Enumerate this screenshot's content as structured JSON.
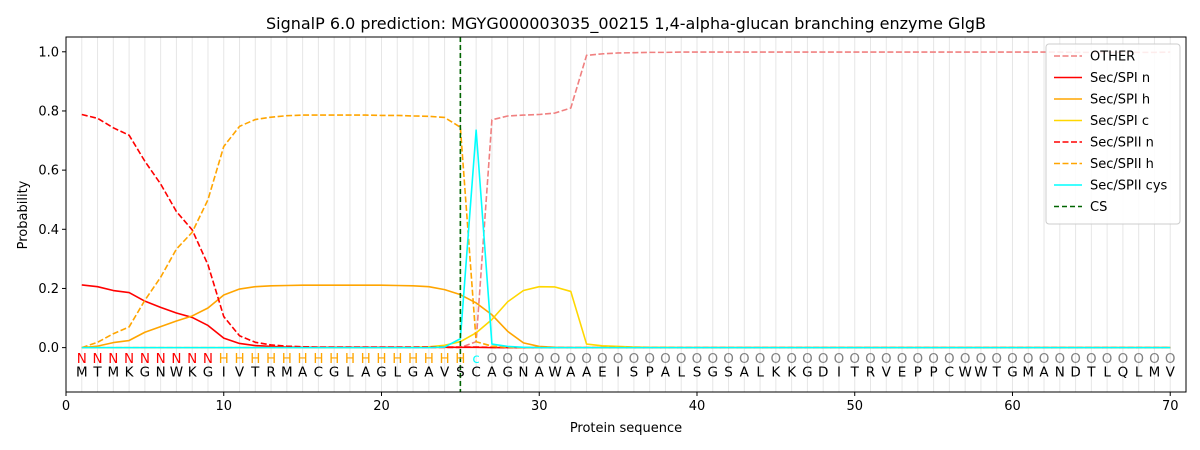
{
  "chart_data": {
    "type": "line",
    "title": "SignalP 6.0 prediction: MGYG000003035_00215 1,4-alpha-glucan branching enzyme GlgB",
    "xlabel": "Protein sequence",
    "ylabel": "Probability",
    "xlim": [
      0,
      71
    ],
    "ylim": [
      -0.15,
      1.05
    ],
    "xticks": [
      0,
      10,
      20,
      30,
      40,
      50,
      60,
      70
    ],
    "yticks": [
      0.0,
      0.2,
      0.4,
      0.6,
      0.8,
      1.0
    ],
    "xtick_labels": [
      "0",
      "10",
      "20",
      "30",
      "40",
      "50",
      "60",
      "70"
    ],
    "ytick_labels": [
      "0.0",
      "0.2",
      "0.4",
      "0.6",
      "0.8",
      "1.0"
    ],
    "legend_position": "top-right",
    "sequence": "MTMKGNWKGIVTRMACGLAGLGAVSCAGNAWAAEISPALSGSALKKGDITRVEPPCWWTGMANDTLQLMV",
    "labels": "NNNNNNNNNHHHHHHHHHHHHHHHHcOOOOOOOOOOOOOOOOOOOOOOOOOOOOOOOOOOOOOOOOOOOOO",
    "label_colors": {
      "N": "#ff0000",
      "H": "#ffa500",
      "c": "#00ffff",
      "O": "#808080"
    },
    "cs_position": 25,
    "series": [
      {
        "name": "OTHER",
        "color": "#f08080",
        "dash": true,
        "values": [
          0.0,
          0.0,
          0.0,
          0.0,
          0.0,
          0.0,
          0.0,
          0.0,
          0.0,
          0.0,
          0.0,
          0.0,
          0.0,
          0.0,
          0.0,
          0.0,
          0.0,
          0.0,
          0.0,
          0.0,
          0.0,
          0.0,
          0.0,
          0.0,
          0.0,
          0.02,
          0.77,
          0.783,
          0.786,
          0.788,
          0.793,
          0.81,
          0.988,
          0.993,
          0.996,
          0.997,
          0.998,
          0.998,
          0.999,
          0.999,
          0.999,
          0.999,
          0.999,
          0.999,
          0.999,
          0.999,
          0.999,
          0.999,
          0.999,
          0.999,
          0.999,
          0.999,
          0.999,
          0.999,
          0.999,
          0.999,
          0.999,
          0.999,
          0.999,
          0.999,
          0.999,
          0.999,
          0.999,
          0.998,
          0.998,
          0.998,
          0.998,
          0.998,
          0.998,
          0.999
        ]
      },
      {
        "name": "Sec/SPI n",
        "color": "#ff0000",
        "dash": false,
        "values": [
          0.212,
          0.206,
          0.193,
          0.186,
          0.157,
          0.136,
          0.117,
          0.102,
          0.075,
          0.032,
          0.014,
          0.007,
          0.004,
          0.002,
          0.001,
          0.001,
          0.001,
          0.001,
          0.001,
          0.001,
          0.001,
          0.001,
          0.001,
          0.001,
          0.001,
          0.001,
          0.0,
          0.0,
          0.0,
          0.0,
          0.0,
          0.0,
          0.0,
          0.0,
          0.0,
          0.0,
          0.0,
          0.0,
          0.0,
          0.0,
          0.0,
          0.0,
          0.0,
          0.0,
          0.0,
          0.0,
          0.0,
          0.0,
          0.0,
          0.0,
          0.0,
          0.0,
          0.0,
          0.0,
          0.0,
          0.0,
          0.0,
          0.0,
          0.0,
          0.0,
          0.0,
          0.0,
          0.0,
          0.0,
          0.0,
          0.0,
          0.0,
          0.0,
          0.0,
          0.0
        ]
      },
      {
        "name": "Sec/SPI h",
        "color": "#ffa500",
        "dash": false,
        "values": [
          0.0,
          0.005,
          0.017,
          0.024,
          0.052,
          0.071,
          0.09,
          0.107,
          0.134,
          0.178,
          0.198,
          0.206,
          0.209,
          0.21,
          0.211,
          0.211,
          0.211,
          0.211,
          0.211,
          0.211,
          0.21,
          0.209,
          0.206,
          0.196,
          0.179,
          0.151,
          0.111,
          0.055,
          0.016,
          0.004,
          0.001,
          0.0,
          0.0,
          0.0,
          0.0,
          0.0,
          0.0,
          0.0,
          0.0,
          0.0,
          0.0,
          0.0,
          0.0,
          0.0,
          0.0,
          0.0,
          0.0,
          0.0,
          0.0,
          0.0,
          0.0,
          0.0,
          0.0,
          0.0,
          0.0,
          0.0,
          0.0,
          0.0,
          0.0,
          0.0,
          0.0,
          0.0,
          0.0,
          0.0,
          0.0,
          0.0,
          0.0,
          0.0,
          0.0,
          0.0
        ]
      },
      {
        "name": "Sec/SPI c",
        "color": "#ffd700",
        "dash": false,
        "values": [
          0.0,
          0.0,
          0.0,
          0.0,
          0.0,
          0.0,
          0.0,
          0.0,
          0.0,
          0.0,
          0.0,
          0.0,
          0.0,
          0.0,
          0.0,
          0.0,
          0.0,
          0.0,
          0.0,
          0.0,
          0.0,
          0.001,
          0.003,
          0.008,
          0.02,
          0.05,
          0.095,
          0.155,
          0.193,
          0.206,
          0.205,
          0.19,
          0.012,
          0.006,
          0.004,
          0.002,
          0.001,
          0.001,
          0.0,
          0.0,
          0.0,
          0.0,
          0.0,
          0.0,
          0.0,
          0.0,
          0.0,
          0.0,
          0.0,
          0.0,
          0.0,
          0.0,
          0.0,
          0.0,
          0.0,
          0.0,
          0.0,
          0.0,
          0.0,
          0.0,
          0.0,
          0.0,
          0.0,
          0.0,
          0.0,
          0.0,
          0.0,
          0.0,
          0.0,
          0.0
        ]
      },
      {
        "name": "Sec/SPII n",
        "color": "#ff0000",
        "dash": true,
        "values": [
          0.788,
          0.775,
          0.743,
          0.718,
          0.63,
          0.553,
          0.46,
          0.398,
          0.28,
          0.105,
          0.04,
          0.018,
          0.009,
          0.005,
          0.003,
          0.002,
          0.002,
          0.002,
          0.002,
          0.002,
          0.002,
          0.002,
          0.002,
          0.002,
          0.002,
          0.002,
          0.001,
          0.0,
          0.0,
          0.0,
          0.0,
          0.0,
          0.0,
          0.0,
          0.0,
          0.0,
          0.0,
          0.0,
          0.0,
          0.0,
          0.0,
          0.0,
          0.0,
          0.0,
          0.0,
          0.0,
          0.0,
          0.0,
          0.0,
          0.0,
          0.0,
          0.0,
          0.0,
          0.0,
          0.0,
          0.0,
          0.0,
          0.0,
          0.0,
          0.0,
          0.0,
          0.0,
          0.0,
          0.0,
          0.0,
          0.0,
          0.0,
          0.0,
          0.0,
          0.0
        ]
      },
      {
        "name": "Sec/SPII h",
        "color": "#ffa500",
        "dash": true,
        "values": [
          0.0,
          0.018,
          0.047,
          0.07,
          0.16,
          0.238,
          0.333,
          0.39,
          0.5,
          0.68,
          0.748,
          0.771,
          0.779,
          0.784,
          0.786,
          0.786,
          0.786,
          0.786,
          0.786,
          0.785,
          0.785,
          0.783,
          0.782,
          0.778,
          0.745,
          0.02,
          0.005,
          0.001,
          0.0,
          0.0,
          0.0,
          0.0,
          0.0,
          0.0,
          0.0,
          0.0,
          0.0,
          0.0,
          0.0,
          0.0,
          0.0,
          0.0,
          0.0,
          0.0,
          0.0,
          0.0,
          0.0,
          0.0,
          0.0,
          0.0,
          0.0,
          0.0,
          0.0,
          0.0,
          0.0,
          0.0,
          0.0,
          0.0,
          0.0,
          0.0,
          0.0,
          0.0,
          0.0,
          0.0,
          0.0,
          0.0,
          0.0,
          0.0,
          0.0,
          0.0
        ]
      },
      {
        "name": "Sec/SPII cys",
        "color": "#00ffff",
        "dash": false,
        "values": [
          0.0,
          0.0,
          0.0,
          0.0,
          0.0,
          0.0,
          0.0,
          0.0,
          0.0,
          0.0,
          0.0,
          0.0,
          0.0,
          0.0,
          0.0,
          0.0,
          0.0,
          0.0,
          0.0,
          0.0,
          0.0,
          0.0,
          0.0,
          0.002,
          0.03,
          0.735,
          0.012,
          0.004,
          0.001,
          0.0,
          0.0,
          0.0,
          0.0,
          0.0,
          0.0,
          0.0,
          0.0,
          0.0,
          0.0,
          0.0,
          0.0,
          0.0,
          0.0,
          0.0,
          0.0,
          0.0,
          0.0,
          0.0,
          0.0,
          0.0,
          0.0,
          0.0,
          0.0,
          0.0,
          0.0,
          0.0,
          0.0,
          0.0,
          0.0,
          0.0,
          0.0,
          0.0,
          0.0,
          0.0,
          0.0,
          0.0,
          0.0,
          0.0,
          0.0,
          0.0
        ]
      }
    ],
    "cs_series": {
      "name": "CS",
      "color": "#006400"
    }
  }
}
